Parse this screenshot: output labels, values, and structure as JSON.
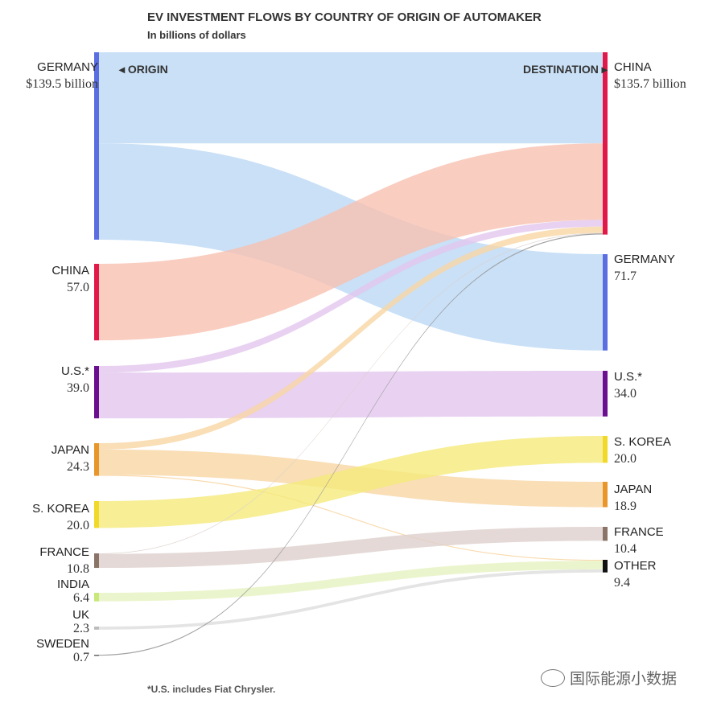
{
  "chart_data": {
    "type": "sankey",
    "title": "EV INVESTMENT FLOWS BY COUNTRY OF ORIGIN OF AUTOMAKER",
    "subtitle": "In billions of dollars",
    "origin_header": "ORIGIN",
    "destination_header": "DESTINATION",
    "footnote": "*U.S. includes Fiat Chrysler.",
    "sources": [
      {
        "id": "germany",
        "name": "GERMANY",
        "value": 139.5,
        "value_label": "$139.5 billion",
        "color": "#5b6ee1",
        "flow_color": "#bcd8f5"
      },
      {
        "id": "china",
        "name": "CHINA",
        "value": 57.0,
        "value_label": "57.0",
        "color": "#e0194a",
        "flow_color": "#f7c0b0"
      },
      {
        "id": "us",
        "name": "U.S.*",
        "value": 39.0,
        "value_label": "39.0",
        "color": "#6a0f8e",
        "flow_color": "#e2c6ee"
      },
      {
        "id": "japan",
        "name": "JAPAN",
        "value": 24.3,
        "value_label": "24.3",
        "color": "#e8962a",
        "flow_color": "#f8d6a4"
      },
      {
        "id": "skorea",
        "name": "S. KOREA",
        "value": 20.0,
        "value_label": "20.0",
        "color": "#f0d928",
        "flow_color": "#f5ea7a"
      },
      {
        "id": "france",
        "name": "FRANCE",
        "value": 10.8,
        "value_label": "10.8",
        "color": "#8a7468",
        "flow_color": "#ddd0cc"
      },
      {
        "id": "india",
        "name": "INDIA",
        "value": 6.4,
        "value_label": "6.4",
        "color": "#c8e87a",
        "flow_color": "#e6f3c0"
      },
      {
        "id": "uk",
        "name": "UK",
        "value": 2.3,
        "value_label": "2.3",
        "color": "#bbbbbb",
        "flow_color": "#dddddd"
      },
      {
        "id": "sweden",
        "name": "SWEDEN",
        "value": 0.7,
        "value_label": "0.7",
        "color": "#666666",
        "flow_color": "#999999"
      }
    ],
    "destinations": [
      {
        "id": "china",
        "name": "CHINA",
        "value": 135.7,
        "value_label": "$135.7 billion",
        "color": "#e0194a"
      },
      {
        "id": "germany",
        "name": "GERMANY",
        "value": 71.7,
        "value_label": "71.7",
        "color": "#5b6ee1"
      },
      {
        "id": "us",
        "name": "U.S.*",
        "value": 34.0,
        "value_label": "34.0",
        "color": "#6a0f8e"
      },
      {
        "id": "skorea",
        "name": "S. KOREA",
        "value": 20.0,
        "value_label": "20.0",
        "color": "#f0d928"
      },
      {
        "id": "japan",
        "name": "JAPAN",
        "value": 18.9,
        "value_label": "18.9",
        "color": "#e8962a"
      },
      {
        "id": "france",
        "name": "FRANCE",
        "value": 10.4,
        "value_label": "10.4",
        "color": "#8a7468"
      },
      {
        "id": "other",
        "name": "OTHER",
        "value": 9.4,
        "value_label": "9.4",
        "color": "#111111"
      }
    ],
    "flows": [
      {
        "from": "germany",
        "to": "china",
        "value": 67.8
      },
      {
        "from": "germany",
        "to": "germany",
        "value": 71.7
      },
      {
        "from": "china",
        "to": "china",
        "value": 57.0
      },
      {
        "from": "us",
        "to": "china",
        "value": 5.0
      },
      {
        "from": "us",
        "to": "us",
        "value": 34.0
      },
      {
        "from": "japan",
        "to": "china",
        "value": 4.7
      },
      {
        "from": "japan",
        "to": "japan",
        "value": 18.9
      },
      {
        "from": "japan",
        "to": "other",
        "value": 0.7
      },
      {
        "from": "skorea",
        "to": "skorea",
        "value": 20.0
      },
      {
        "from": "france",
        "to": "china",
        "value": 0.4
      },
      {
        "from": "france",
        "to": "france",
        "value": 10.4
      },
      {
        "from": "india",
        "to": "other",
        "value": 6.4
      },
      {
        "from": "uk",
        "to": "other",
        "value": 2.3
      },
      {
        "from": "sweden",
        "to": "china",
        "value": 0.7
      }
    ]
  },
  "watermark": "国际能源小数据"
}
